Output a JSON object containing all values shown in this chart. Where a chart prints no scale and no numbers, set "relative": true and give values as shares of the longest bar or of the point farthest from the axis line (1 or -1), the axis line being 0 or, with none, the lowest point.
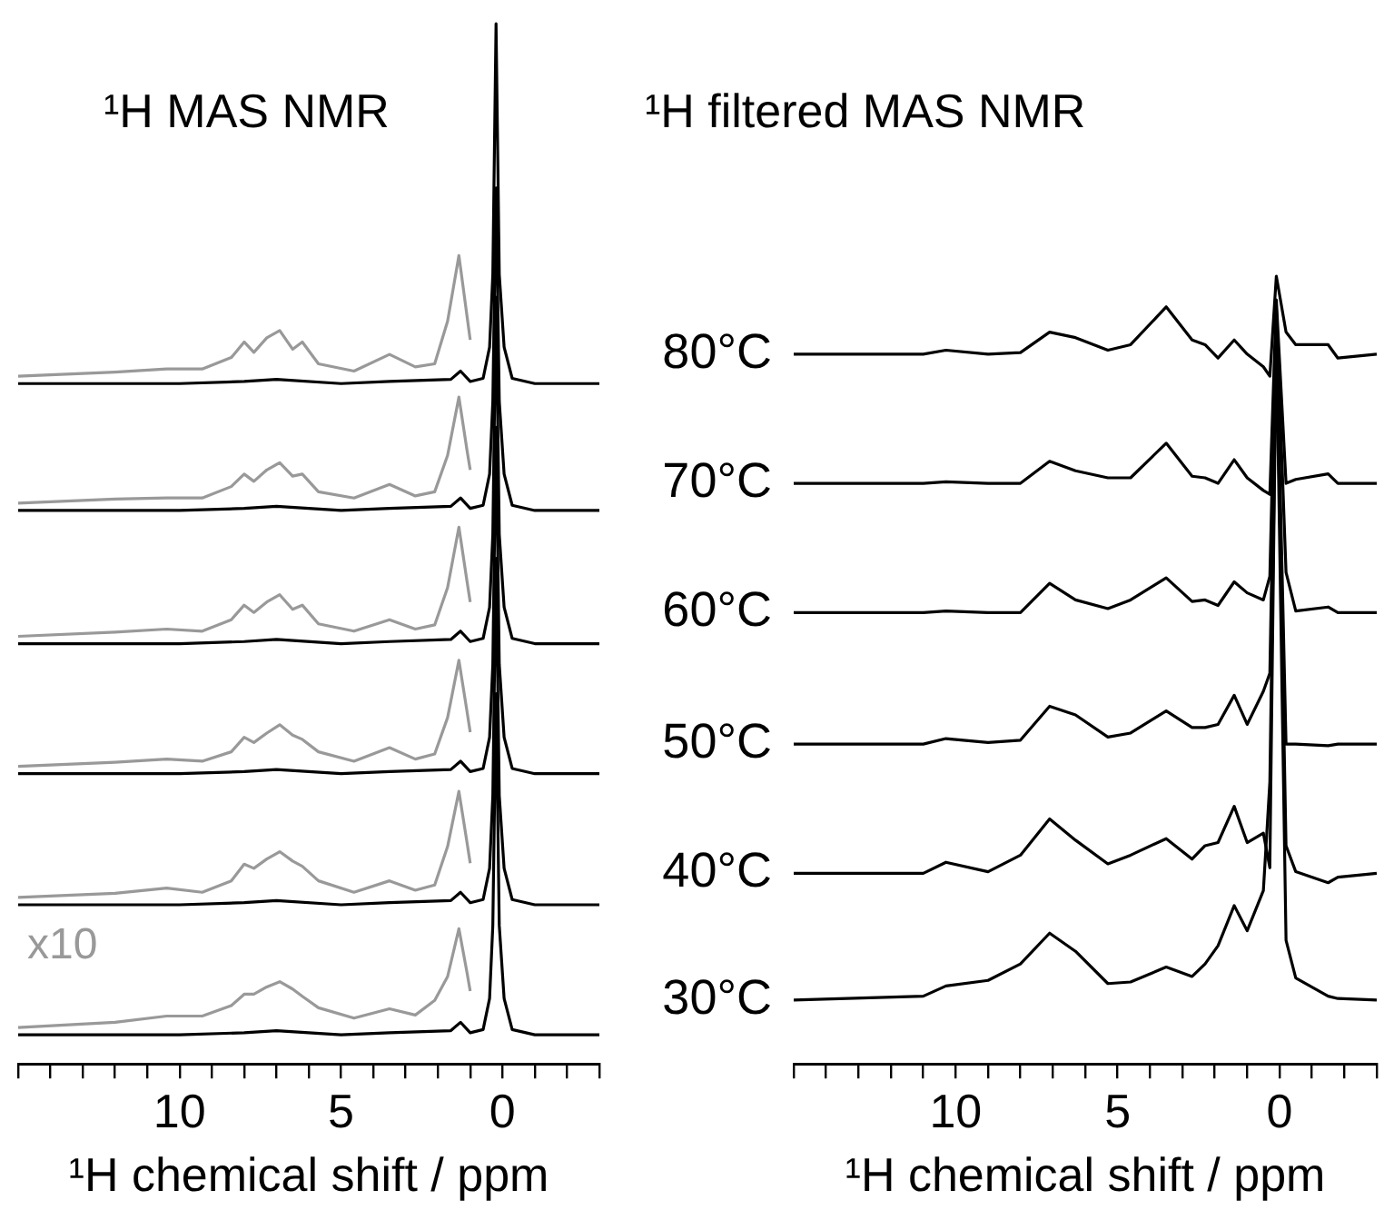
{
  "chart_data": [
    {
      "type": "line",
      "title": "¹H MAS NMR",
      "xlabel": "¹H chemical shift / ppm",
      "relative": true,
      "annotations": [
        "x10"
      ],
      "xlim": [
        15,
        -3
      ],
      "xticks": [
        {
          "value": 15,
          "label": null
        },
        {
          "value": 14,
          "label": null
        },
        {
          "value": 13,
          "label": null
        },
        {
          "value": 12,
          "label": null
        },
        {
          "value": 11,
          "label": null
        },
        10,
        {
          "value": 9,
          "label": null
        },
        {
          "value": 8,
          "label": null
        },
        {
          "value": 7,
          "label": null
        },
        {
          "value": 6,
          "label": null
        },
        5,
        {
          "value": 4,
          "label": null
        },
        {
          "value": 3,
          "label": null
        },
        {
          "value": 2,
          "label": null
        },
        {
          "value": 1,
          "label": null
        },
        0,
        {
          "value": -1,
          "label": null
        },
        {
          "value": -2,
          "label": null
        },
        {
          "value": -3,
          "label": null
        }
      ],
      "series": [
        {
          "color": "#999999",
          "x": [
            15,
            12,
            10.4,
            9.3,
            8.4,
            8.0,
            7.7,
            7.3,
            6.9,
            6.5,
            6.2,
            5.7,
            4.6,
            3.5,
            2.7,
            2.1,
            1.7,
            1.35,
            1.1,
            1.0
          ],
          "values": [
            0.661,
            0.665,
            0.668,
            0.668,
            0.679,
            0.694,
            0.684,
            0.698,
            0.705,
            0.687,
            0.694,
            0.673,
            0.666,
            0.682,
            0.67,
            0.673,
            0.714,
            0.777,
            0.719,
            0.696
          ]
        },
        {
          "color": "#999999",
          "x": [
            15,
            12,
            10.4,
            9.3,
            8.4,
            8.0,
            7.7,
            7.3,
            6.9,
            6.5,
            6.2,
            5.7,
            4.6,
            3.5,
            2.7,
            2.1,
            1.7,
            1.35,
            1.1,
            1.0
          ],
          "values": [
            0.539,
            0.543,
            0.544,
            0.544,
            0.555,
            0.567,
            0.56,
            0.571,
            0.578,
            0.565,
            0.567,
            0.55,
            0.544,
            0.557,
            0.546,
            0.55,
            0.585,
            0.641,
            0.59,
            0.571
          ]
        },
        {
          "color": "#999999",
          "x": [
            15,
            12,
            10.4,
            9.3,
            8.4,
            8.0,
            7.7,
            7.3,
            6.9,
            6.5,
            6.2,
            5.7,
            4.6,
            3.5,
            2.7,
            2.1,
            1.7,
            1.35,
            1.1,
            1.0
          ],
          "values": [
            0.411,
            0.415,
            0.418,
            0.416,
            0.427,
            0.441,
            0.434,
            0.444,
            0.451,
            0.437,
            0.441,
            0.423,
            0.416,
            0.427,
            0.418,
            0.422,
            0.458,
            0.516,
            0.464,
            0.444
          ]
        },
        {
          "color": "#999999",
          "x": [
            15,
            12,
            10.4,
            9.3,
            8.4,
            8.0,
            7.7,
            7.3,
            6.9,
            6.5,
            6.2,
            5.7,
            4.6,
            3.5,
            2.7,
            2.1,
            1.7,
            1.35,
            1.1,
            1.0
          ],
          "values": [
            0.286,
            0.29,
            0.293,
            0.291,
            0.3,
            0.314,
            0.309,
            0.318,
            0.326,
            0.316,
            0.312,
            0.3,
            0.291,
            0.304,
            0.293,
            0.298,
            0.333,
            0.388,
            0.339,
            0.319
          ]
        },
        {
          "color": "#999999",
          "x": [
            15,
            12,
            10.4,
            9.3,
            8.4,
            8.0,
            7.7,
            7.3,
            6.9,
            6.5,
            6.2,
            5.7,
            4.6,
            3.5,
            2.7,
            2.1,
            1.7,
            1.35,
            1.1,
            1.0
          ],
          "values": [
            0.16,
            0.164,
            0.169,
            0.165,
            0.176,
            0.192,
            0.188,
            0.197,
            0.204,
            0.195,
            0.19,
            0.176,
            0.165,
            0.176,
            0.167,
            0.172,
            0.209,
            0.262,
            0.213,
            0.193
          ]
        },
        {
          "color": "#999999",
          "x": [
            15,
            12,
            10.4,
            9.3,
            8.4,
            8.0,
            7.7,
            7.3,
            6.9,
            6.5,
            6.2,
            5.7,
            4.6,
            3.5,
            2.7,
            2.1,
            1.7,
            1.35,
            1.1,
            1.0
          ],
          "values": [
            0.035,
            0.04,
            0.046,
            0.046,
            0.056,
            0.067,
            0.067,
            0.074,
            0.079,
            0.072,
            0.065,
            0.054,
            0.044,
            0.053,
            0.047,
            0.061,
            0.084,
            0.13,
            0.088,
            0.07
          ]
        },
        {
          "color": "#000000",
          "x": [
            15,
            10,
            8,
            7,
            5,
            3.5,
            1.6,
            1.3,
            1.0,
            0.6,
            0.4,
            0.3,
            0.2,
            0.1,
            -0.05,
            -0.3,
            -1,
            -3
          ],
          "values": [
            0.654,
            0.654,
            0.656,
            0.658,
            0.654,
            0.656,
            0.658,
            0.666,
            0.656,
            0.659,
            0.689,
            0.759,
            1.0,
            0.759,
            0.689,
            0.659,
            0.654,
            0.654
          ]
        },
        {
          "color": "#000000",
          "x": [
            15,
            10,
            8,
            7,
            5,
            3.5,
            1.6,
            1.3,
            1.0,
            0.6,
            0.4,
            0.3,
            0.2,
            0.1,
            -0.05,
            -0.3,
            -1,
            -3
          ],
          "values": [
            0.532,
            0.532,
            0.534,
            0.536,
            0.532,
            0.534,
            0.536,
            0.544,
            0.534,
            0.537,
            0.567,
            0.637,
            0.842,
            0.637,
            0.567,
            0.537,
            0.532,
            0.532
          ]
        },
        {
          "color": "#000000",
          "x": [
            15,
            10,
            8,
            7,
            5,
            3.5,
            1.6,
            1.3,
            1.0,
            0.6,
            0.4,
            0.3,
            0.2,
            0.1,
            -0.05,
            -0.3,
            -1,
            -3
          ],
          "values": [
            0.404,
            0.404,
            0.406,
            0.408,
            0.404,
            0.406,
            0.408,
            0.416,
            0.406,
            0.409,
            0.439,
            0.509,
            0.737,
            0.509,
            0.439,
            0.409,
            0.404,
            0.404
          ]
        },
        {
          "color": "#000000",
          "x": [
            15,
            10,
            8,
            7,
            5,
            3.5,
            1.6,
            1.3,
            1.0,
            0.6,
            0.4,
            0.3,
            0.2,
            0.1,
            -0.05,
            -0.3,
            -1,
            -3
          ],
          "values": [
            0.279,
            0.279,
            0.281,
            0.283,
            0.279,
            0.281,
            0.283,
            0.291,
            0.281,
            0.284,
            0.314,
            0.384,
            0.612,
            0.384,
            0.314,
            0.284,
            0.279,
            0.279
          ]
        },
        {
          "color": "#000000",
          "x": [
            15,
            10,
            8,
            7,
            5,
            3.5,
            1.6,
            1.3,
            1.0,
            0.6,
            0.4,
            0.3,
            0.2,
            0.1,
            -0.05,
            -0.3,
            -1,
            -3
          ],
          "values": [
            0.153,
            0.153,
            0.155,
            0.157,
            0.153,
            0.155,
            0.157,
            0.165,
            0.155,
            0.158,
            0.188,
            0.258,
            0.486,
            0.258,
            0.188,
            0.158,
            0.153,
            0.153
          ]
        },
        {
          "color": "#000000",
          "x": [
            15,
            10,
            8,
            7,
            5,
            3.5,
            1.6,
            1.3,
            1.0,
            0.6,
            0.4,
            0.3,
            0.2,
            0.1,
            -0.05,
            -0.3,
            -1,
            -3
          ],
          "values": [
            0.028,
            0.028,
            0.03,
            0.032,
            0.028,
            0.03,
            0.032,
            0.04,
            0.03,
            0.033,
            0.063,
            0.133,
            0.356,
            0.133,
            0.063,
            0.033,
            0.028,
            0.028
          ]
        }
      ]
    },
    {
      "type": "line",
      "title": "¹H filtered MAS NMR",
      "xlabel": "¹H chemical shift / ppm",
      "relative": true,
      "xlim": [
        15,
        -3
      ],
      "xticks": [
        {
          "value": 15,
          "label": null
        },
        {
          "value": 14,
          "label": null
        },
        {
          "value": 13,
          "label": null
        },
        {
          "value": 12,
          "label": null
        },
        {
          "value": 11,
          "label": null
        },
        10,
        {
          "value": 9,
          "label": null
        },
        {
          "value": 8,
          "label": null
        },
        {
          "value": 7,
          "label": null
        },
        {
          "value": 6,
          "label": null
        },
        5,
        {
          "value": 4,
          "label": null
        },
        {
          "value": 3,
          "label": null
        },
        {
          "value": 2,
          "label": null
        },
        {
          "value": 1,
          "label": null
        },
        0,
        {
          "value": -1,
          "label": null
        },
        {
          "value": -2,
          "label": null
        },
        {
          "value": -3,
          "label": null
        }
      ],
      "x": [
        15,
        11,
        10.3,
        9,
        8,
        7.1,
        6.3,
        5.3,
        4.6,
        3.5,
        2.7,
        2.3,
        1.9,
        1.4,
        1.0,
        0.5,
        0.3,
        0.1,
        -0.2,
        -0.5,
        -1.5,
        -1.8,
        -3
      ],
      "series": [
        {
          "name": "80°C",
          "color": "#000000",
          "values": [
            0.901,
            0.901,
            0.906,
            0.901,
            0.903,
            0.929,
            0.922,
            0.906,
            0.913,
            0.961,
            0.919,
            0.913,
            0.896,
            0.919,
            0.901,
            0.885,
            0.873,
            1.0,
            0.929,
            0.913,
            0.913,
            0.896,
            0.901
          ]
        },
        {
          "name": "70°C",
          "color": "#000000",
          "values": [
            0.737,
            0.737,
            0.739,
            0.737,
            0.737,
            0.765,
            0.753,
            0.744,
            0.744,
            0.788,
            0.746,
            0.744,
            0.737,
            0.767,
            0.744,
            0.728,
            0.723,
            0.97,
            0.737,
            0.742,
            0.749,
            0.737,
            0.737
          ]
        },
        {
          "name": "60°C",
          "color": "#000000",
          "values": [
            0.573,
            0.573,
            0.575,
            0.573,
            0.573,
            0.61,
            0.589,
            0.578,
            0.589,
            0.617,
            0.587,
            0.589,
            0.582,
            0.612,
            0.598,
            0.589,
            0.619,
            0.959,
            0.624,
            0.575,
            0.58,
            0.573,
            0.573
          ]
        },
        {
          "name": "50°C",
          "color": "#000000",
          "values": [
            0.406,
            0.406,
            0.413,
            0.408,
            0.411,
            0.454,
            0.443,
            0.415,
            0.42,
            0.448,
            0.427,
            0.427,
            0.431,
            0.468,
            0.431,
            0.473,
            0.496,
            0.946,
            0.406,
            0.406,
            0.404,
            0.406,
            0.406
          ]
        },
        {
          "name": "40°C",
          "color": "#000000",
          "values": [
            0.242,
            0.242,
            0.256,
            0.244,
            0.265,
            0.311,
            0.284,
            0.254,
            0.265,
            0.286,
            0.26,
            0.277,
            0.281,
            0.327,
            0.281,
            0.293,
            0.249,
            0.935,
            0.277,
            0.244,
            0.23,
            0.237,
            0.242
          ]
        },
        {
          "name": "30°C",
          "color": "#000000",
          "values": [
            0.081,
            0.086,
            0.099,
            0.106,
            0.127,
            0.166,
            0.143,
            0.102,
            0.104,
            0.123,
            0.111,
            0.127,
            0.15,
            0.201,
            0.169,
            0.22,
            0.358,
            0.924,
            0.157,
            0.109,
            0.086,
            0.083,
            0.081
          ]
        }
      ]
    }
  ]
}
